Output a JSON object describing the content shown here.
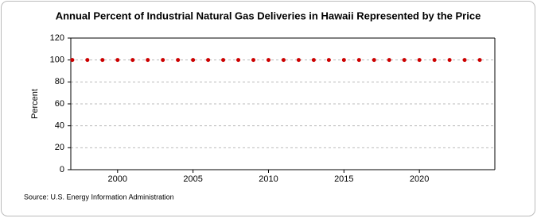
{
  "chart_data": {
    "type": "scatter",
    "title": "Annual Percent of Industrial Natural Gas Deliveries in Hawaii Represented by the Price",
    "y_label": "Percent",
    "source": "Source: U.S. Energy Information Administration",
    "x": [
      1997,
      1998,
      1999,
      2000,
      2001,
      2002,
      2003,
      2004,
      2005,
      2006,
      2007,
      2008,
      2009,
      2010,
      2011,
      2012,
      2013,
      2014,
      2015,
      2016,
      2017,
      2018,
      2019,
      2020,
      2021,
      2022,
      2023,
      2024
    ],
    "values": [
      100,
      100,
      100,
      100,
      100,
      100,
      100,
      100,
      100,
      100,
      100,
      100,
      100,
      100,
      100,
      100,
      100,
      100,
      100,
      100,
      100,
      100,
      100,
      100,
      100,
      100,
      100,
      100
    ],
    "color": "#cc0000",
    "xlim": [
      1996.9,
      2025
    ],
    "xticks": [
      2000,
      2005,
      2010,
      2015,
      2020
    ],
    "ylim": [
      0,
      120
    ],
    "yticks": [
      0,
      20,
      40,
      60,
      80,
      100,
      120
    ],
    "grid": true
  }
}
